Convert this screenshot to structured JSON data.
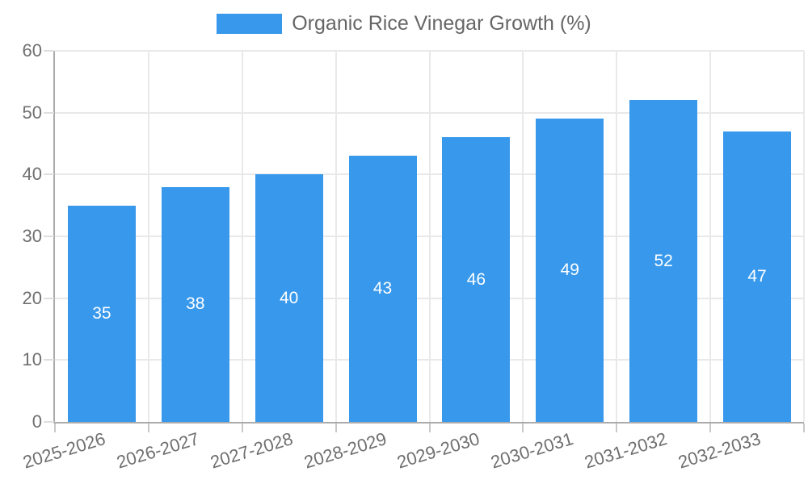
{
  "legend": {
    "label": "Organic Rice Vinegar Growth (%)"
  },
  "chart_data": {
    "type": "bar",
    "title": "",
    "xlabel": "",
    "ylabel": "",
    "categories": [
      "2025-2026",
      "2026-2027",
      "2027-2028",
      "2028-2029",
      "2029-2030",
      "2030-2031",
      "2031-2032",
      "2032-2033"
    ],
    "series": [
      {
        "name": "Organic Rice Vinegar Growth (%)",
        "values": [
          35,
          38,
          40,
          43,
          46,
          49,
          52,
          47
        ]
      }
    ],
    "value_labels_shown_inside_bars": [
      35,
      38,
      40,
      43,
      46,
      49,
      52,
      47
    ],
    "ylim": [
      0,
      60
    ],
    "y_ticks": [
      0,
      10,
      20,
      30,
      40,
      50,
      60
    ],
    "grid": true,
    "legend_position": "top",
    "x_tick_rotation_deg": -17
  },
  "colors": {
    "bar": "#3899ec",
    "grid": "#e9e9e9",
    "axis": "#ababab",
    "y_tick_mark": "#dedede",
    "x_tick_mark": "#c9c9c9",
    "tick_text": "#6f6f6f",
    "legend_text": "#666666",
    "value_text": "#ffffff",
    "background": "#ffffff"
  }
}
